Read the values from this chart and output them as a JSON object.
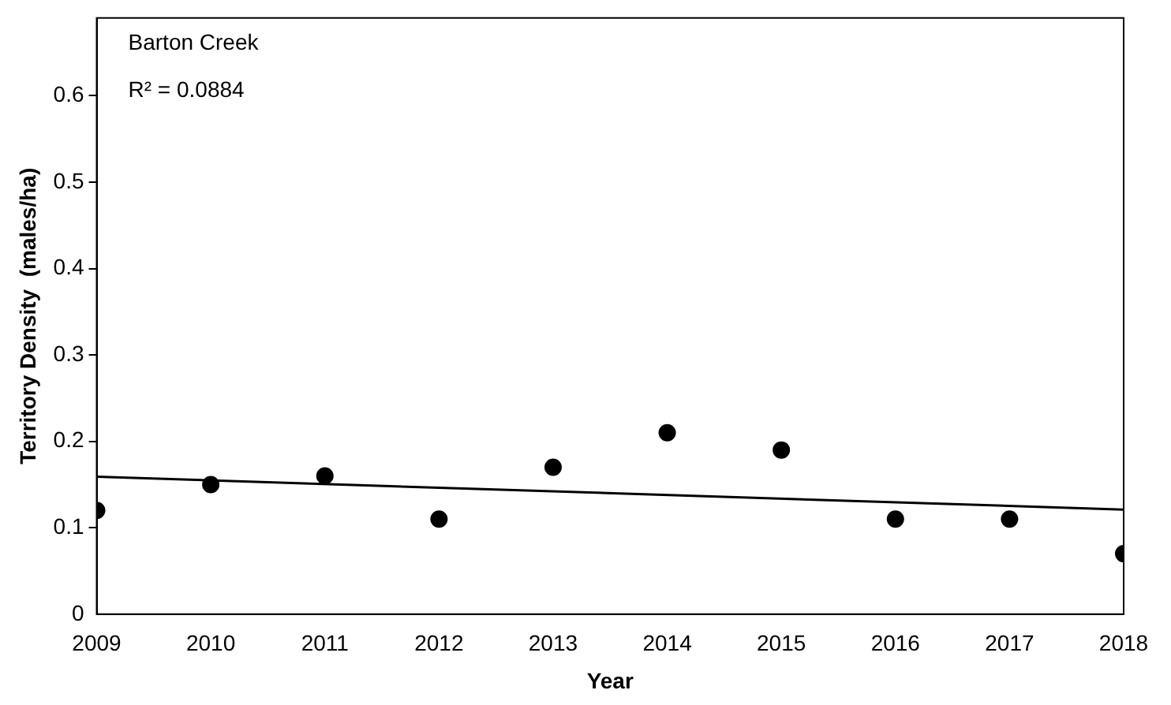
{
  "chart_data": {
    "type": "scatter",
    "xlabel": "Year",
    "ylabel": "Territory Density  (males/ha)",
    "annotations": [
      "Barton Creek",
      "R² = 0.0884"
    ],
    "series": [
      {
        "color": "#000000",
        "marker": "circle",
        "x": [
          2009,
          2010,
          2011,
          2012,
          2013,
          2014,
          2015,
          2016,
          2017,
          2018
        ],
        "values": [
          0.12,
          0.15,
          0.16,
          0.11,
          0.17,
          0.21,
          0.19,
          0.11,
          0.11,
          0.07
        ]
      },
      {
        "type": "line",
        "color": "#000000",
        "marker": "none",
        "x": [
          2009,
          2018
        ],
        "values": [
          0.159,
          0.121
        ]
      }
    ],
    "xlim": [
      2009,
      2018
    ],
    "xticks": [
      2009,
      2010,
      2011,
      2012,
      2013,
      2014,
      2015,
      2016,
      2017,
      2018
    ],
    "ylim": [
      0,
      0.69
    ],
    "yticks": [
      0,
      0.1,
      0.2,
      0.3,
      0.4,
      0.5,
      0.6
    ],
    "grid": false,
    "legend": false,
    "line_style": "solid"
  }
}
